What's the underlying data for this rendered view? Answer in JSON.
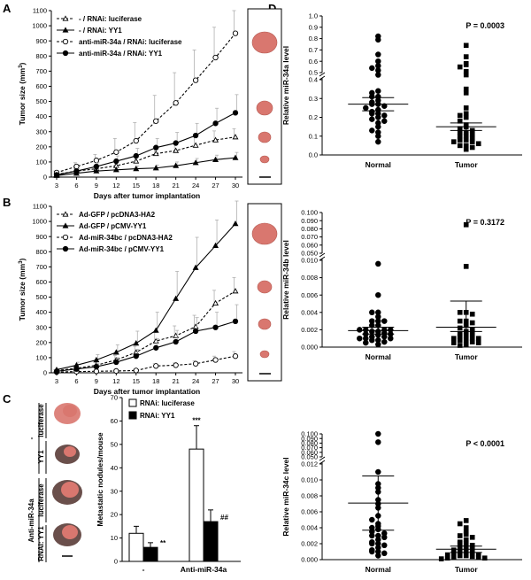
{
  "colors": {
    "ink": "#000000",
    "errorbar": "#b0b0b0",
    "tissue": "#d9776f",
    "dark_tissue": "#5a3c37",
    "white": "#ffffff"
  },
  "panels": {
    "A": "A",
    "B": "B",
    "C": "C",
    "D": "D"
  },
  "chart_data": [
    {
      "id": "A",
      "type": "line",
      "xlabel": "Days after tumor implantation",
      "ylabel": "Tumor size (mm3)",
      "ylabel_main": "Tumor size (mm",
      "ylabel_sup": "3",
      "ylabel_end": ")",
      "x": [
        3,
        6,
        9,
        12,
        15,
        18,
        21,
        24,
        27,
        30
      ],
      "xlim": [
        3,
        30
      ],
      "ylim": [
        0,
        1100
      ],
      "yticks": [
        0,
        100,
        200,
        300,
        400,
        500,
        600,
        700,
        800,
        900,
        1000,
        1100
      ],
      "series": [
        {
          "name": "- / RNAi: luciferase",
          "marker": "open-triangle",
          "dashed": true,
          "values": [
            18,
            40,
            55,
            75,
            105,
            155,
            175,
            210,
            245,
            265
          ],
          "errors": [
            5,
            15,
            20,
            25,
            35,
            45,
            50,
            55,
            60,
            55
          ]
        },
        {
          "name": "- / RNAi: YY1",
          "marker": "filled-triangle",
          "dashed": false,
          "values": [
            10,
            25,
            40,
            48,
            55,
            60,
            75,
            95,
            115,
            128
          ],
          "errors": [
            4,
            8,
            12,
            15,
            18,
            20,
            25,
            28,
            30,
            35
          ]
        },
        {
          "name": "anti-miR-34a / RNAi: luciferase",
          "marker": "open-circle",
          "dashed": true,
          "values": [
            30,
            70,
            110,
            165,
            240,
            370,
            490,
            640,
            790,
            950
          ],
          "errors": [
            10,
            25,
            40,
            90,
            120,
            170,
            200,
            200,
            200,
            150
          ]
        },
        {
          "name": "anti-miR-34a / RNAi: YY1",
          "marker": "filled-circle",
          "dashed": false,
          "values": [
            15,
            40,
            70,
            105,
            140,
            195,
            225,
            275,
            355,
            425
          ],
          "errors": [
            5,
            15,
            25,
            35,
            50,
            60,
            70,
            80,
            100,
            120
          ]
        }
      ]
    },
    {
      "id": "B",
      "type": "line",
      "xlabel": "Days after tumor implantation",
      "ylabel": "Tumor size (mm3)",
      "ylabel_main": "Tumor size (mm",
      "ylabel_sup": "3",
      "ylabel_end": ")",
      "x": [
        3,
        6,
        9,
        12,
        15,
        18,
        21,
        24,
        27,
        30
      ],
      "xlim": [
        3,
        30
      ],
      "ylim": [
        0,
        1100
      ],
      "yticks": [
        0,
        100,
        200,
        300,
        400,
        500,
        600,
        700,
        800,
        900,
        1000,
        1100
      ],
      "series": [
        {
          "name": "Ad-GFP / pcDNA3-HA2",
          "marker": "open-triangle",
          "dashed": true,
          "values": [
            15,
            30,
            50,
            85,
            135,
            210,
            245,
            305,
            460,
            540
          ],
          "errors": [
            5,
            15,
            20,
            30,
            40,
            55,
            65,
            75,
            85,
            90
          ]
        },
        {
          "name": "Ad-GFP / pCMV-YY1",
          "marker": "filled-triangle",
          "dashed": false,
          "values": [
            20,
            50,
            85,
            135,
            195,
            280,
            490,
            695,
            840,
            985
          ],
          "errors": [
            8,
            20,
            35,
            50,
            80,
            120,
            180,
            200,
            170,
            150
          ]
        },
        {
          "name": "Ad-miR-34bc / pcDNA3-HA2",
          "marker": "open-circle",
          "dashed": true,
          "values": [
            5,
            8,
            10,
            12,
            15,
            45,
            50,
            60,
            85,
            110
          ],
          "errors": [
            3,
            4,
            5,
            6,
            8,
            15,
            15,
            20,
            25,
            30
          ]
        },
        {
          "name": "Ad-miR-34bc / pCMV-YY1",
          "marker": "filled-circle",
          "dashed": false,
          "values": [
            10,
            25,
            40,
            70,
            110,
            165,
            205,
            275,
            300,
            340
          ],
          "errors": [
            5,
            12,
            20,
            30,
            45,
            60,
            75,
            90,
            100,
            110
          ]
        }
      ]
    },
    {
      "id": "C",
      "type": "bar",
      "ylabel": "Metastatic nodules/mouse",
      "categories": [
        "-",
        "Anti-miR-34a"
      ],
      "ylim": [
        0,
        70
      ],
      "yticks": [
        0,
        10,
        20,
        30,
        40,
        50,
        60,
        70
      ],
      "series": [
        {
          "name": "RNAi: luciferase",
          "fill": "open",
          "values": [
            12,
            48
          ],
          "errors": [
            3,
            10
          ],
          "annotations": [
            "",
            "***"
          ]
        },
        {
          "name": "RNAi: YY1",
          "fill": "filled",
          "values": [
            6,
            17
          ],
          "errors": [
            2,
            5
          ],
          "annotations": [
            "**",
            "##"
          ]
        }
      ],
      "image_labels": {
        "group_minus": "-",
        "group_anti": "Anti-miR-34a",
        "luciferase_1": "luciferase",
        "yy1_1": "YY1",
        "luciferase_2": "luciferase",
        "yy1_2": "RNAi: YY1"
      }
    },
    {
      "id": "D1",
      "type": "scatter",
      "ylabel": "Relative miR-34a level",
      "pvalue": "P = 0.0003",
      "categories": [
        "Normal",
        "Tumor"
      ],
      "ylim": [
        0,
        1.0
      ],
      "axis_break": [
        0.4,
        0.5
      ],
      "yticks": [
        0.0,
        0.1,
        0.2,
        0.3,
        0.4,
        0.5,
        0.6,
        0.7,
        0.8,
        0.9,
        1.0
      ],
      "ytick_labels": [
        "0.0",
        "0.1",
        "0.2",
        "0.3",
        "0.4",
        "0.5",
        "0.6",
        "0.7",
        "0.8",
        "0.9",
        "1.0"
      ],
      "groups": [
        {
          "name": "Normal",
          "marker": "circle",
          "mean": 0.27,
          "error": [
            0.235,
            0.305
          ],
          "values": [
            0.82,
            0.79,
            0.66,
            0.6,
            0.56,
            0.54,
            0.52,
            0.48,
            0.34,
            0.33,
            0.31,
            0.31,
            0.29,
            0.28,
            0.27,
            0.27,
            0.26,
            0.25,
            0.24,
            0.23,
            0.22,
            0.22,
            0.21,
            0.2,
            0.19,
            0.18,
            0.17,
            0.15,
            0.13,
            0.12,
            0.1,
            0.07
          ]
        },
        {
          "name": "Tumor",
          "marker": "square",
          "mean": 0.15,
          "error": [
            0.13,
            0.17
          ],
          "values": [
            0.74,
            0.64,
            0.58,
            0.57,
            0.55,
            0.51,
            0.48,
            0.35,
            0.33,
            0.25,
            0.22,
            0.21,
            0.2,
            0.18,
            0.16,
            0.15,
            0.14,
            0.13,
            0.12,
            0.12,
            0.11,
            0.1,
            0.1,
            0.09,
            0.08,
            0.08,
            0.07,
            0.07,
            0.06,
            0.05,
            0.05,
            0.04,
            0.03
          ]
        }
      ]
    },
    {
      "id": "D2",
      "type": "scatter",
      "ylabel": "Relative miR-34b level",
      "pvalue": "P = 0.3172",
      "categories": [
        "Normal",
        "Tumor"
      ],
      "ylim": [
        0,
        0.1
      ],
      "axis_break": [
        0.01,
        0.05
      ],
      "yticks": [
        0.0,
        0.002,
        0.004,
        0.006,
        0.008,
        0.01,
        0.05,
        0.06,
        0.07,
        0.08,
        0.09,
        0.1
      ],
      "ytick_labels": [
        "0.000",
        "0.002",
        "0.004",
        "0.006",
        "0.008",
        "0.010",
        "0.050",
        "0.060",
        "0.070",
        "0.080",
        "0.090",
        "0.100"
      ],
      "groups": [
        {
          "name": "Normal",
          "marker": "circle",
          "mean": 0.0019,
          "error": [
            0.0015,
            0.0023
          ],
          "values": [
            0.0096,
            0.006,
            0.004,
            0.004,
            0.0035,
            0.003,
            0.003,
            0.003,
            0.0025,
            0.0025,
            0.002,
            0.002,
            0.002,
            0.002,
            0.0018,
            0.0018,
            0.0016,
            0.0015,
            0.0015,
            0.0014,
            0.0012,
            0.0012,
            0.001,
            0.001,
            0.001,
            0.0008,
            0.0008,
            0.0006,
            0.0005,
            0.0003
          ]
        },
        {
          "name": "Tumor",
          "marker": "square",
          "mean": 0.0023,
          "error": [
            0.0018,
            0.0081
          ],
          "values": [
            0.085,
            0.0093,
            0.004,
            0.004,
            0.0038,
            0.003,
            0.003,
            0.0028,
            0.0025,
            0.0022,
            0.002,
            0.0018,
            0.0015,
            0.0015,
            0.0013,
            0.0012,
            0.001,
            0.001,
            0.001,
            0.0008,
            0.0008,
            0.0006,
            0.0005,
            0.0005,
            0.0003,
            0.0002
          ]
        }
      ],
      "upper_error": 0.0053
    },
    {
      "id": "D3",
      "type": "scatter",
      "ylabel": "Relative miR-34c level",
      "pvalue": "P < 0.0001",
      "categories": [
        "Normal",
        "Tumor"
      ],
      "ylim": [
        0,
        0.1
      ],
      "axis_break": [
        0.012,
        0.05
      ],
      "yticks": [
        0.0,
        0.002,
        0.004,
        0.006,
        0.008,
        0.01,
        0.012,
        0.05,
        0.06,
        0.07,
        0.08,
        0.09,
        0.1
      ],
      "ytick_labels": [
        "0.000",
        "0.002",
        "0.004",
        "0.006",
        "0.008",
        "0.010",
        "0.012",
        "0.050",
        "0.060",
        "0.070",
        "0.080",
        "0.090",
        "0.100"
      ],
      "groups": [
        {
          "name": "Normal",
          "marker": "circle",
          "mean": 0.0071,
          "error": [
            0.0037,
            0.0105
          ],
          "values": [
            0.11,
            0.082,
            0.011,
            0.0095,
            0.009,
            0.0085,
            0.0075,
            0.007,
            0.0065,
            0.0055,
            0.005,
            0.0045,
            0.0042,
            0.004,
            0.0038,
            0.0035,
            0.0033,
            0.003,
            0.003,
            0.0028,
            0.0025,
            0.0022,
            0.002,
            0.002,
            0.0018,
            0.0015,
            0.0012,
            0.001,
            0.001,
            0.0008,
            0.0005
          ]
        },
        {
          "name": "Tumor",
          "marker": "square",
          "mean": 0.0013,
          "error": [
            0.0009,
            0.0017
          ],
          "values": [
            0.0049,
            0.0045,
            0.004,
            0.0035,
            0.0032,
            0.003,
            0.0028,
            0.0025,
            0.0022,
            0.002,
            0.002,
            0.0018,
            0.0015,
            0.0015,
            0.0013,
            0.0012,
            0.001,
            0.001,
            0.0008,
            0.0008,
            0.0006,
            0.0006,
            0.0005,
            0.0005,
            0.0004,
            0.0003,
            0.0003,
            0.0002,
            0.0002,
            0.0001
          ]
        }
      ]
    }
  ]
}
